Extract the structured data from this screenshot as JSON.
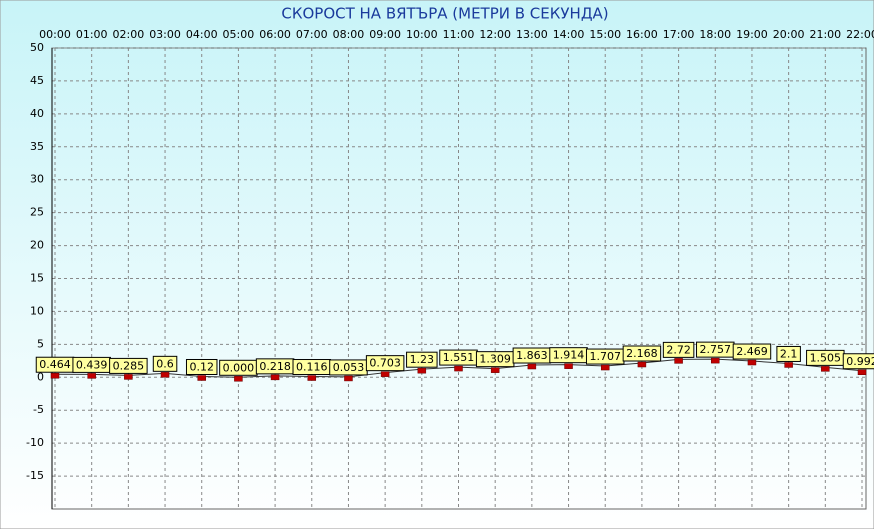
{
  "chart_data": {
    "type": "line",
    "title": "СКОРОСТ НА ВЯТЪРА (МЕТРИ В СЕКУНДА)",
    "categories": [
      "00:00",
      "01:00",
      "02:00",
      "03:00",
      "04:00",
      "05:00",
      "06:00",
      "07:00",
      "08:00",
      "09:00",
      "10:00",
      "11:00",
      "12:00",
      "13:00",
      "14:00",
      "15:00",
      "16:00",
      "17:00",
      "18:00",
      "19:00",
      "20:00",
      "21:00",
      "22:00"
    ],
    "series": [
      {
        "name": "СКОРОСТ НА ВЯТЪРА",
        "color": "#c00000",
        "values": [
          0.464,
          0.439,
          0.285,
          0.6,
          0.12,
          0,
          0.218,
          0.116,
          0.053,
          0.703,
          1.23,
          1.551,
          1.309,
          1.863,
          1.914,
          1.707,
          2.168,
          2.72,
          2.757,
          2.469,
          2.1,
          1.505,
          0.992
        ],
        "value_labels": [
          "0.464",
          "0.439",
          "0.285",
          "0.6",
          "0.12",
          "0.000",
          "0.218",
          "0.116",
          "0.053",
          "0.703",
          "1.23",
          "1.551",
          "1.309",
          "1.863",
          "1.914",
          "1.707",
          "2.168",
          "2.72",
          "2.757",
          "2.469",
          "2.1",
          "1.505",
          "0.992"
        ]
      }
    ],
    "ylim": [
      -20,
      50
    ],
    "yticks": [
      -15,
      -10,
      -5,
      0,
      5,
      10,
      15,
      20,
      25,
      30,
      35,
      40,
      45,
      50
    ],
    "grid": true
  }
}
